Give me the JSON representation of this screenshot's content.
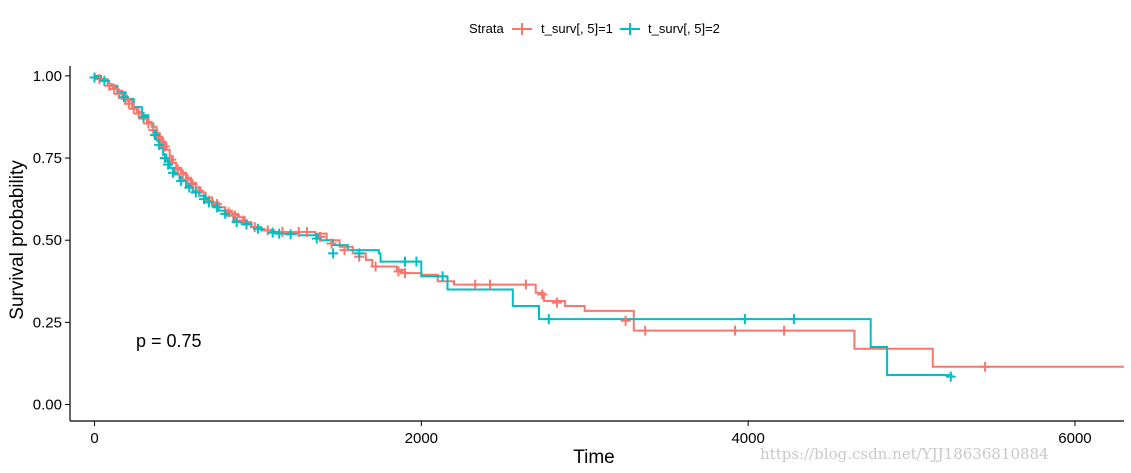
{
  "chart_data": {
    "type": "line",
    "subtype": "kaplan-meier survival curve",
    "xlabel": "Time",
    "ylabel": "Survival probability",
    "xlim": [
      -150,
      6300
    ],
    "ylim": [
      -0.05,
      1.03
    ],
    "x_ticks": [
      0,
      2000,
      4000,
      6000
    ],
    "x_tick_labels": [
      "0",
      "2000",
      "4000",
      "6000"
    ],
    "y_ticks": [
      0,
      0.25,
      0.5,
      0.75,
      1.0
    ],
    "y_tick_labels": [
      "0.00",
      "0.25",
      "0.50",
      "0.75",
      "1.00"
    ],
    "grid": false,
    "legend": {
      "title": "Strata",
      "placement": "top-center",
      "entries": [
        "t_surv[, 5]=1",
        "t_surv[, 5]=2"
      ]
    },
    "annotations": [
      {
        "text": "p = 0.75",
        "x": 120,
        "y": 0.19
      }
    ],
    "watermark": "https://blog.csdn.net/YJJ18636810884",
    "series": [
      {
        "name": "t_surv[, 5]=1",
        "color": "#F8766D",
        "steps": [
          [
            0,
            1.0
          ],
          [
            30,
            0.99
          ],
          [
            80,
            0.975
          ],
          [
            110,
            0.965
          ],
          [
            140,
            0.955
          ],
          [
            170,
            0.94
          ],
          [
            200,
            0.925
          ],
          [
            230,
            0.905
          ],
          [
            260,
            0.89
          ],
          [
            290,
            0.875
          ],
          [
            320,
            0.86
          ],
          [
            350,
            0.845
          ],
          [
            380,
            0.825
          ],
          [
            400,
            0.81
          ],
          [
            420,
            0.795
          ],
          [
            440,
            0.775
          ],
          [
            460,
            0.755
          ],
          [
            480,
            0.735
          ],
          [
            500,
            0.72
          ],
          [
            530,
            0.705
          ],
          [
            560,
            0.69
          ],
          [
            590,
            0.675
          ],
          [
            620,
            0.66
          ],
          [
            650,
            0.645
          ],
          [
            680,
            0.63
          ],
          [
            720,
            0.615
          ],
          [
            760,
            0.6
          ],
          [
            800,
            0.59
          ],
          [
            840,
            0.58
          ],
          [
            880,
            0.57
          ],
          [
            920,
            0.555
          ],
          [
            960,
            0.54
          ],
          [
            1000,
            0.535
          ],
          [
            1040,
            0.53
          ],
          [
            1100,
            0.525
          ],
          [
            1200,
            0.525
          ],
          [
            1350,
            0.52
          ],
          [
            1420,
            0.5
          ],
          [
            1500,
            0.48
          ],
          [
            1580,
            0.46
          ],
          [
            1660,
            0.44
          ],
          [
            1700,
            0.42
          ],
          [
            1850,
            0.41
          ],
          [
            1900,
            0.4
          ],
          [
            2000,
            0.395
          ],
          [
            2100,
            0.375
          ],
          [
            2200,
            0.365
          ],
          [
            2700,
            0.34
          ],
          [
            2750,
            0.315
          ],
          [
            2880,
            0.3
          ],
          [
            3000,
            0.285
          ],
          [
            3300,
            0.225
          ],
          [
            4650,
            0.17
          ],
          [
            5130,
            0.115
          ],
          [
            6300,
            0.115
          ]
        ],
        "censors": [
          [
            30,
            0.99
          ],
          [
            90,
            0.97
          ],
          [
            120,
            0.96
          ],
          [
            150,
            0.945
          ],
          [
            190,
            0.93
          ],
          [
            210,
            0.915
          ],
          [
            240,
            0.9
          ],
          [
            270,
            0.885
          ],
          [
            300,
            0.87
          ],
          [
            330,
            0.855
          ],
          [
            360,
            0.835
          ],
          [
            390,
            0.815
          ],
          [
            410,
            0.8
          ],
          [
            430,
            0.785
          ],
          [
            470,
            0.745
          ],
          [
            510,
            0.715
          ],
          [
            540,
            0.7
          ],
          [
            570,
            0.685
          ],
          [
            600,
            0.67
          ],
          [
            640,
            0.65
          ],
          [
            700,
            0.62
          ],
          [
            750,
            0.61
          ],
          [
            820,
            0.585
          ],
          [
            860,
            0.575
          ],
          [
            910,
            0.56
          ],
          [
            980,
            0.54
          ],
          [
            1060,
            0.53
          ],
          [
            1150,
            0.525
          ],
          [
            1250,
            0.525
          ],
          [
            1300,
            0.525
          ],
          [
            1380,
            0.51
          ],
          [
            1450,
            0.49
          ],
          [
            1530,
            0.47
          ],
          [
            1620,
            0.45
          ],
          [
            1720,
            0.42
          ],
          [
            1860,
            0.405
          ],
          [
            1900,
            0.4
          ],
          [
            2330,
            0.365
          ],
          [
            2420,
            0.365
          ],
          [
            2640,
            0.365
          ],
          [
            2740,
            0.335
          ],
          [
            2830,
            0.31
          ],
          [
            3250,
            0.255
          ],
          [
            3370,
            0.225
          ],
          [
            3920,
            0.225
          ],
          [
            4220,
            0.225
          ],
          [
            5450,
            0.115
          ]
        ]
      },
      {
        "name": "t_surv[, 5]=2",
        "color": "#00BFC4",
        "steps": [
          [
            0,
            1.0
          ],
          [
            40,
            0.985
          ],
          [
            90,
            0.97
          ],
          [
            140,
            0.95
          ],
          [
            190,
            0.93
          ],
          [
            240,
            0.905
          ],
          [
            290,
            0.88
          ],
          [
            330,
            0.855
          ],
          [
            360,
            0.83
          ],
          [
            380,
            0.805
          ],
          [
            400,
            0.78
          ],
          [
            420,
            0.76
          ],
          [
            440,
            0.74
          ],
          [
            460,
            0.72
          ],
          [
            490,
            0.7
          ],
          [
            520,
            0.68
          ],
          [
            560,
            0.665
          ],
          [
            600,
            0.65
          ],
          [
            640,
            0.635
          ],
          [
            680,
            0.62
          ],
          [
            720,
            0.605
          ],
          [
            760,
            0.59
          ],
          [
            800,
            0.575
          ],
          [
            850,
            0.56
          ],
          [
            900,
            0.55
          ],
          [
            960,
            0.54
          ],
          [
            1020,
            0.53
          ],
          [
            1080,
            0.525
          ],
          [
            1150,
            0.52
          ],
          [
            1250,
            0.515
          ],
          [
            1380,
            0.5
          ],
          [
            1460,
            0.485
          ],
          [
            1550,
            0.47
          ],
          [
            1740,
            0.46
          ],
          [
            1750,
            0.435
          ],
          [
            2000,
            0.39
          ],
          [
            2160,
            0.35
          ],
          [
            2560,
            0.3
          ],
          [
            2720,
            0.26
          ],
          [
            4750,
            0.175
          ],
          [
            4850,
            0.09
          ],
          [
            5250,
            0.09
          ]
        ],
        "censors": [
          [
            0,
            0.995
          ],
          [
            60,
            0.985
          ],
          [
            180,
            0.935
          ],
          [
            300,
            0.875
          ],
          [
            370,
            0.82
          ],
          [
            395,
            0.79
          ],
          [
            430,
            0.75
          ],
          [
            450,
            0.73
          ],
          [
            480,
            0.705
          ],
          [
            530,
            0.68
          ],
          [
            580,
            0.66
          ],
          [
            620,
            0.645
          ],
          [
            670,
            0.625
          ],
          [
            700,
            0.615
          ],
          [
            750,
            0.6
          ],
          [
            800,
            0.58
          ],
          [
            870,
            0.555
          ],
          [
            930,
            0.548
          ],
          [
            1000,
            0.535
          ],
          [
            1090,
            0.523
          ],
          [
            1130,
            0.52
          ],
          [
            1200,
            0.518
          ],
          [
            1360,
            0.505
          ],
          [
            1460,
            0.46
          ],
          [
            1620,
            0.46
          ],
          [
            1900,
            0.435
          ],
          [
            1970,
            0.435
          ],
          [
            2130,
            0.39
          ],
          [
            2780,
            0.26
          ],
          [
            3980,
            0.26
          ],
          [
            4280,
            0.26
          ],
          [
            5240,
            0.085
          ]
        ]
      }
    ]
  }
}
